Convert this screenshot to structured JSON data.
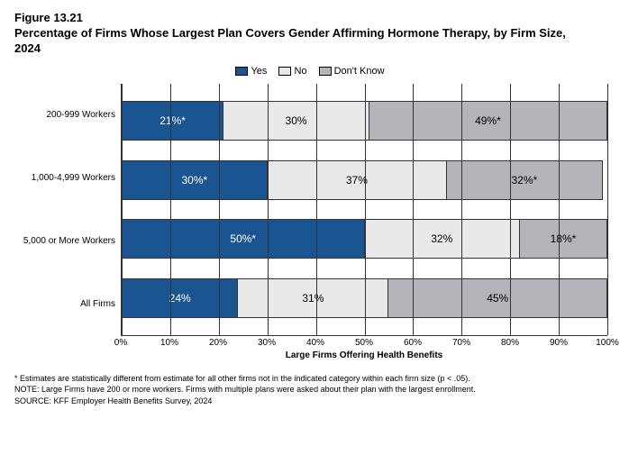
{
  "figure_number": "Figure 13.21",
  "title": "Percentage of Firms Whose Largest Plan Covers Gender Affirming Hormone Therapy, by Firm Size, 2024",
  "legend": {
    "yes": "Yes",
    "no": "No",
    "dk": "Don't Know"
  },
  "colors": {
    "yes": "#1a5591",
    "no": "#e9e9ea",
    "dk": "#b3b5b8",
    "border": "#333333",
    "background": "#ffffff"
  },
  "x_label": "Large Firms Offering Health Benefits",
  "x_ticks": [
    "0%",
    "10%",
    "20%",
    "30%",
    "40%",
    "50%",
    "60%",
    "70%",
    "80%",
    "90%",
    "100%"
  ],
  "categories": [
    {
      "label": "200-999 Workers",
      "yes": 21,
      "yes_label": "21%*",
      "no": 30,
      "no_label": "30%",
      "dk": 49,
      "dk_label": "49%*"
    },
    {
      "label": "1,000-4,999 Workers",
      "yes": 30,
      "yes_label": "30%*",
      "no": 37,
      "no_label": "37%",
      "dk": 32,
      "dk_label": "32%*"
    },
    {
      "label": "5,000 or More Workers",
      "yes": 50,
      "yes_label": "50%*",
      "no": 32,
      "no_label": "32%",
      "dk": 18,
      "dk_label": "18%*"
    },
    {
      "label": "All Firms",
      "yes": 24,
      "yes_label": "24%",
      "no": 31,
      "no_label": "31%",
      "dk": 45,
      "dk_label": "45%"
    }
  ],
  "footnote_sig": "* Estimates are statistically different from estimate for all other firms not in the indicated category within each firm size (p < .05).",
  "footnote_note": "NOTE: Large Firms have 200 or more workers.  Firms with multiple plans were asked about their plan with the largest enrollment.",
  "footnote_source": "SOURCE: KFF Employer Health Benefits Survey, 2024"
}
